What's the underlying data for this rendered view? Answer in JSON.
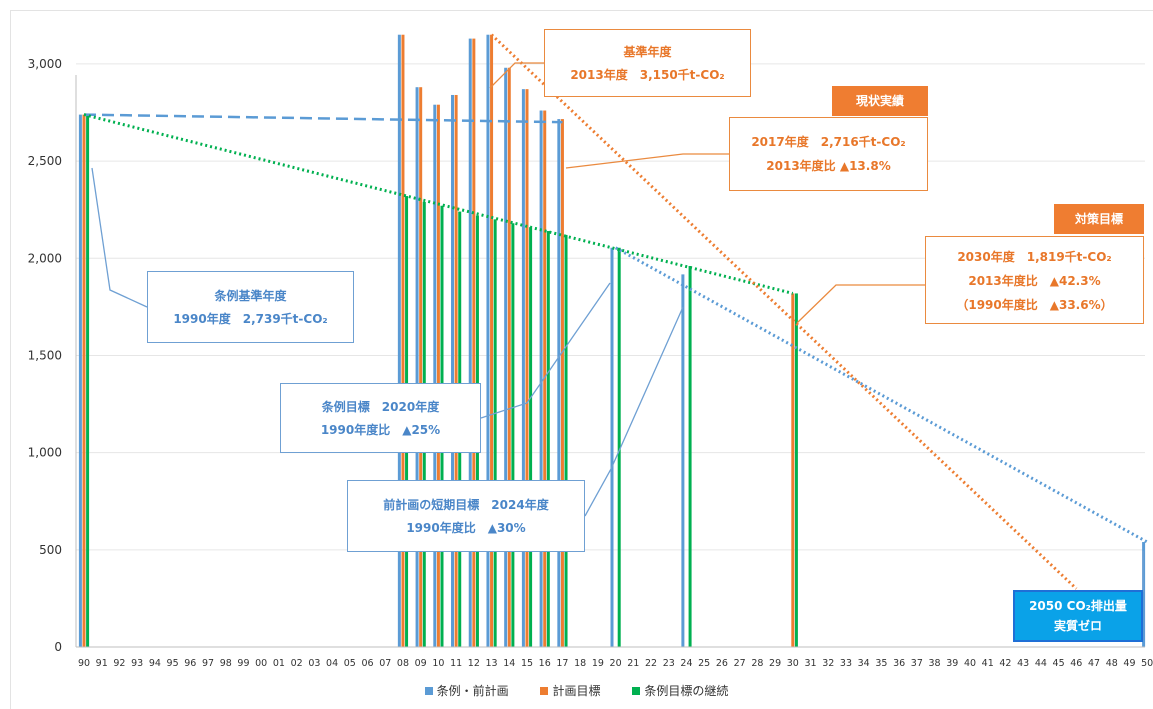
{
  "chart_data": {
    "type": "bar",
    "y_ticks": [
      "0",
      "500",
      "1,000",
      "1,500",
      "2,000",
      "2,500",
      "3,000"
    ],
    "ylim": [
      0,
      3200
    ],
    "x_labels": [
      "90",
      "91",
      "92",
      "93",
      "94",
      "95",
      "96",
      "97",
      "98",
      "99",
      "00",
      "01",
      "02",
      "03",
      "04",
      "05",
      "06",
      "07",
      "08",
      "09",
      "10",
      "11",
      "12",
      "13",
      "14",
      "15",
      "16",
      "17",
      "18",
      "19",
      "20",
      "21",
      "22",
      "23",
      "24",
      "25",
      "26",
      "27",
      "28",
      "29",
      "30",
      "31",
      "32",
      "33",
      "34",
      "35",
      "36",
      "37",
      "38",
      "39",
      "40",
      "41",
      "42",
      "43",
      "44",
      "45",
      "46",
      "47",
      "48",
      "49",
      "50"
    ],
    "series": [
      {
        "name": "条例・前計画",
        "color": "#5b9bd5",
        "values": {
          "90": 2739,
          "08": 3150,
          "09": 2880,
          "10": 2790,
          "11": 2840,
          "12": 3130,
          "13": 3150,
          "14": 2980,
          "15": 2870,
          "16": 2760,
          "17": 2716,
          "20": 2054,
          "24": 1917,
          "50": 540
        }
      },
      {
        "name": "計画目標",
        "color": "#ed7d31",
        "values": {
          "90": 2739,
          "08": 3150,
          "09": 2880,
          "10": 2790,
          "11": 2840,
          "12": 3130,
          "13": 3150,
          "14": 2980,
          "15": 2870,
          "16": 2760,
          "17": 2716,
          "30": 1819
        }
      },
      {
        "name": "条例目標の継続",
        "color": "#00b050",
        "values": {
          "90": 2739,
          "08": 2320,
          "09": 2290,
          "10": 2270,
          "11": 2240,
          "12": 2220,
          "13": 2200,
          "14": 2180,
          "15": 2160,
          "16": 2140,
          "17": 2120,
          "20": 2054,
          "24": 1960,
          "30": 1819
        }
      }
    ],
    "trend_lines": [
      {
        "name": "blue-dashed",
        "from": [
          "90",
          2739
        ],
        "to": [
          "17",
          2700
        ]
      },
      {
        "name": "green-dotted",
        "from": [
          "90",
          2739
        ],
        "to": [
          "30",
          1819
        ]
      },
      {
        "name": "blue-dotted",
        "from": [
          "20",
          2054
        ],
        "to": [
          "50",
          540
        ]
      },
      {
        "name": "orange-dotted",
        "from": [
          "13",
          3150
        ],
        "to": [
          "46",
          300
        ]
      }
    ]
  },
  "annotations": {
    "base_year": {
      "line1": "基準年度",
      "line2": "2013年度　3,150千t-CO₂"
    },
    "current": {
      "tag": "現状実績",
      "line1": "2017年度　2,716千t-CO₂",
      "line2": "2013年度比 ▲13.8%"
    },
    "target": {
      "tag": "対策目標",
      "line1": "2030年度　1,819千t-CO₂",
      "line2": "2013年度比　▲42.3%",
      "line3": "（1990年度比　▲33.6%）"
    },
    "ordinance_base": {
      "line1": "条例基準年度",
      "line2": "1990年度　2,739千t-CO₂"
    },
    "ordinance_target": {
      "line1": "条例目標　2020年度",
      "line2": "1990年度比　▲25%"
    },
    "short_term": {
      "line1": "前計画の短期目標　2024年度",
      "line2": "1990年度比　▲30%"
    },
    "zero": {
      "line1": "2050 CO₂排出量",
      "line2": "実質ゼロ"
    }
  }
}
